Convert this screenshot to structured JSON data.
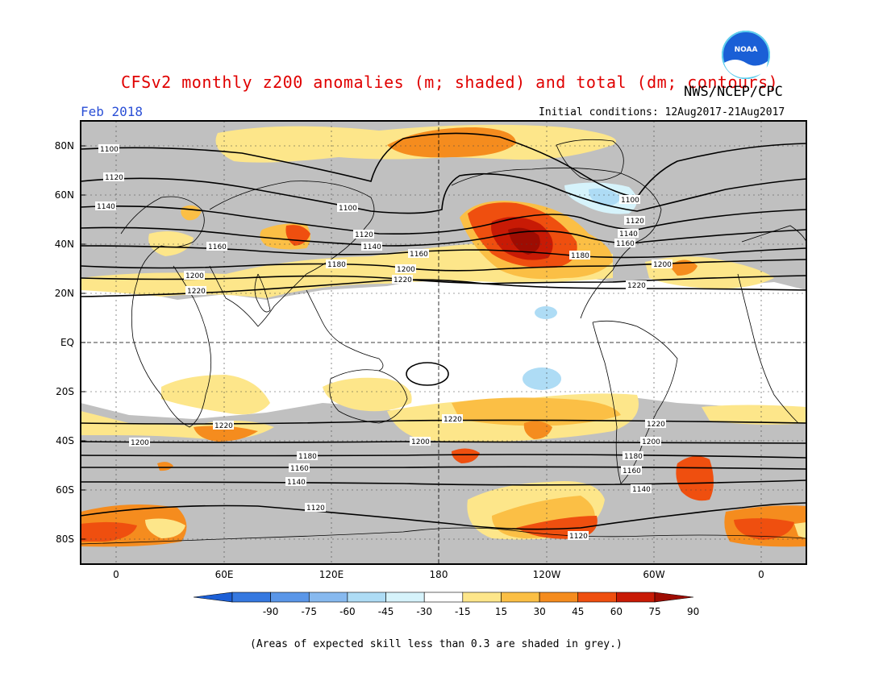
{
  "header": {
    "title": "CFSv2 monthly z200 anomalies (m; shaded) and total (dm; contours)",
    "agency": "NWS/NCEP/CPC",
    "period": "Feb 2018",
    "initial_conditions": "Initial conditions: 12Aug2017-21Aug2017"
  },
  "logo": {
    "name": "noaa-logo",
    "text": "NOAA"
  },
  "axes": {
    "lat_labels": [
      "80N",
      "60N",
      "40N",
      "20N",
      "EQ",
      "20S",
      "40S",
      "60S",
      "80S"
    ],
    "lon_labels": [
      "0",
      "60E",
      "120E",
      "180",
      "120W",
      "60W",
      "0"
    ]
  },
  "colorbar": {
    "ticks": [
      "-90",
      "-75",
      "-60",
      "-45",
      "-30",
      "-15",
      "15",
      "30",
      "45",
      "60",
      "75",
      "90"
    ],
    "colors": [
      "#1c5fd6",
      "#3578e0",
      "#5a96e8",
      "#87b9ef",
      "#aedcf5",
      "#d6f3fb",
      "#ffffff",
      "#fde68a",
      "#fbbf45",
      "#f58c1e",
      "#ef4f0f",
      "#c81a05",
      "#9e0c02"
    ]
  },
  "footnote": "(Areas of expected skill less than 0.3 are shaded in grey.)",
  "contour_labels": [
    "1100",
    "1120",
    "1140",
    "1160",
    "1180",
    "1200",
    "1220"
  ]
}
